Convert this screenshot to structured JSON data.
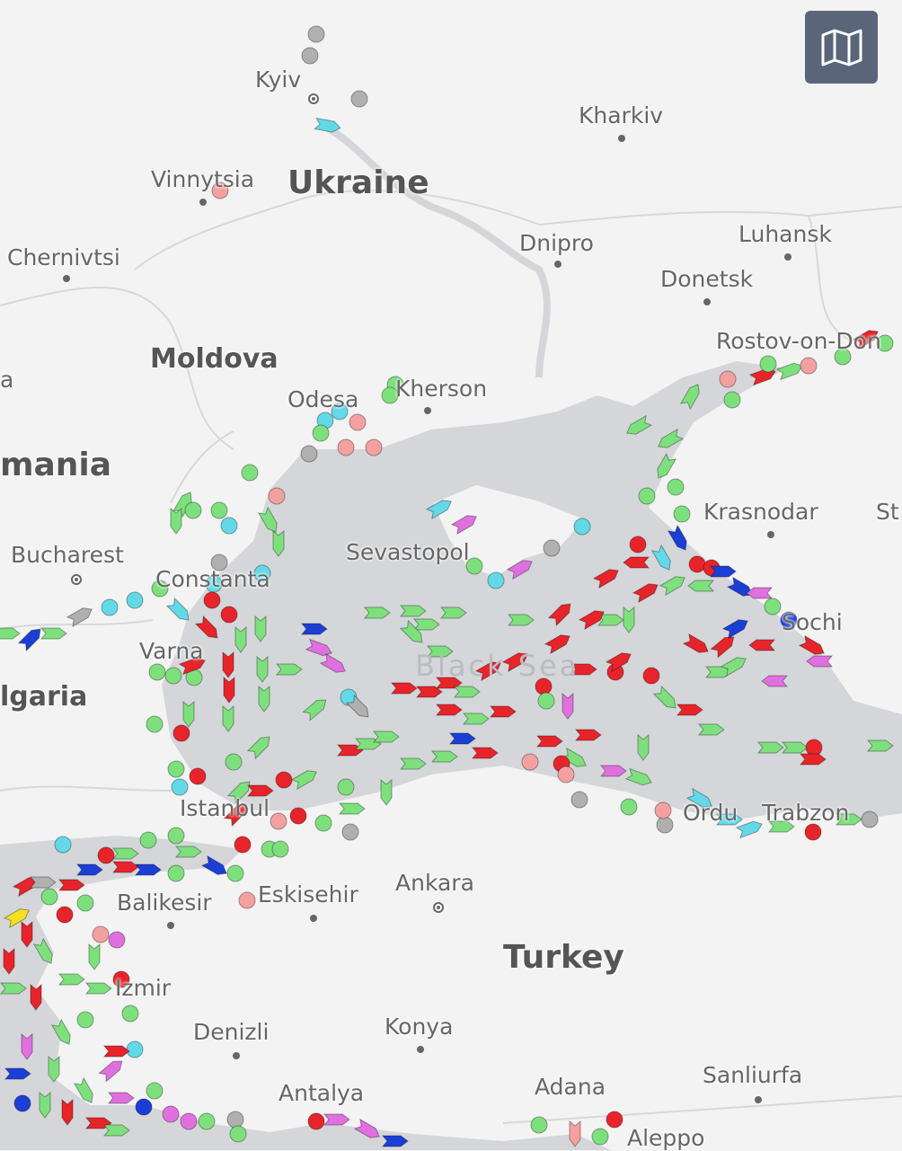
{
  "map": {
    "sea_label": "Black Sea",
    "countries": [
      "Ukraine",
      "Moldova",
      "mania",
      "lgaria",
      "Turkey"
    ],
    "cities": [
      "Kyiv",
      "Kharkiv",
      "Vinnytsia",
      "Chernivtsi",
      "Dnipro",
      "Luhansk",
      "Donetsk",
      "Rostov-on-Don",
      "Odesa",
      "Kherson",
      "Krasnodar",
      "St",
      "Bucharest",
      "Constanta",
      "Sevastopol",
      "Varna",
      "Sochi",
      "Istanbul",
      "Ordu",
      "Trabzon",
      "Balikesir",
      "Eskisehir",
      "Ankara",
      "Izmir",
      "Denizli",
      "Konya",
      "Antalya",
      "Adana",
      "Sanliurfa",
      "Aleppo",
      "a"
    ]
  },
  "controls": {
    "map_layers_icon": "map-icon"
  },
  "vessel_colors": {
    "cargo": "#7de07d",
    "tanker": "#e8242b",
    "passenger": "#1b3fd6",
    "tug_special": "#63d9e8",
    "pleasure": "#e070e0",
    "fishing": "#f5a0a0",
    "unknown": "#b0b0b0",
    "high_speed": "#f5e020"
  }
}
